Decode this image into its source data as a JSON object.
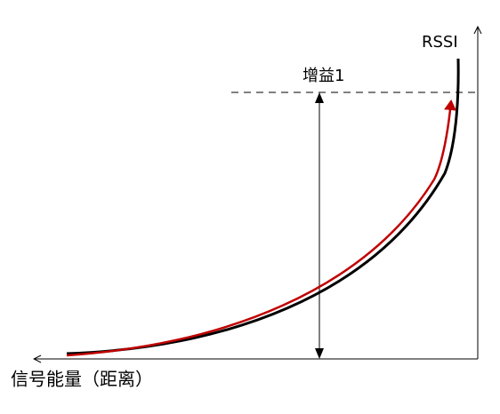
{
  "y_axis_label": "RSSI",
  "gain_label": "增益1",
  "x_axis_label": "信号能量（距离）"
}
